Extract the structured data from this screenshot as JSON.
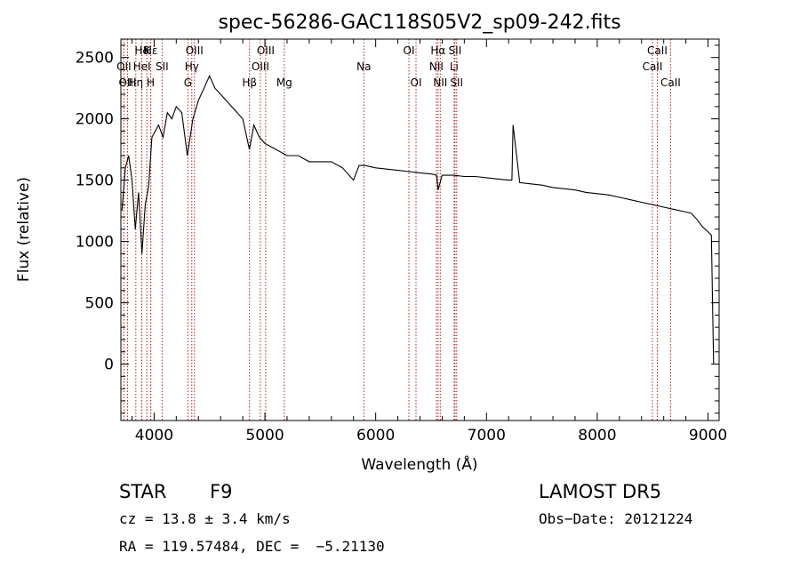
{
  "chart_data": {
    "type": "line",
    "title": "spec-56286-GAC118S05V2_sp09-242.fits",
    "xlabel": "Wavelength (Å)",
    "ylabel": "Flux (relative)",
    "xlim": [
      3700,
      9100
    ],
    "ylim": [
      -460,
      2650
    ],
    "xticks": [
      4000,
      5000,
      6000,
      7000,
      8000,
      9000
    ],
    "yticks": [
      0,
      500,
      1000,
      1500,
      2000,
      2500
    ],
    "grid": false,
    "line_color": "#000000",
    "marker_color": "#b22222",
    "series": [
      {
        "x": [
          3710,
          3740,
          3770,
          3800,
          3830,
          3860,
          3890,
          3920,
          3950,
          3980,
          4010,
          4040,
          4080,
          4120,
          4160,
          4200,
          4250,
          4300,
          4350,
          4400,
          4450,
          4500,
          4550,
          4600,
          4650,
          4700,
          4750,
          4800,
          4860,
          4900,
          4950,
          5000,
          5100,
          5200,
          5300,
          5400,
          5500,
          5600,
          5700,
          5800,
          5850,
          5900,
          6000,
          6100,
          6200,
          6300,
          6400,
          6500,
          6550,
          6563,
          6600,
          6700,
          6800,
          6900,
          7000,
          7100,
          7200,
          7230,
          7240,
          7300,
          7400,
          7500,
          7600,
          7700,
          7800,
          7900,
          8000,
          8100,
          8200,
          8300,
          8400,
          8500,
          8600,
          8700,
          8800,
          8850,
          8900,
          8950,
          9000,
          9030,
          9050
        ],
        "y": [
          1250,
          1600,
          1700,
          1500,
          1100,
          1400,
          900,
          1300,
          1450,
          1850,
          1900,
          1950,
          1850,
          2050,
          2000,
          2100,
          2050,
          1700,
          2000,
          2150,
          2250,
          2350,
          2250,
          2200,
          2150,
          2100,
          2050,
          2000,
          1750,
          1950,
          1850,
          1800,
          1750,
          1700,
          1700,
          1650,
          1650,
          1650,
          1600,
          1500,
          1620,
          1620,
          1600,
          1590,
          1580,
          1570,
          1560,
          1550,
          1540,
          1420,
          1540,
          1540,
          1530,
          1530,
          1520,
          1510,
          1500,
          1500,
          1950,
          1480,
          1470,
          1460,
          1440,
          1430,
          1420,
          1400,
          1390,
          1380,
          1360,
          1340,
          1320,
          1300,
          1280,
          1260,
          1240,
          1230,
          1180,
          1120,
          1080,
          1050,
          0
        ]
      }
    ],
    "lines": [
      {
        "name": "Hδ",
        "x": 3889,
        "row": 0
      },
      {
        "name": "K",
        "x": 3934,
        "row": 0
      },
      {
        "name": "Hε",
        "x": 3970,
        "row": 0
      },
      {
        "name": "OIII",
        "x": 4364,
        "row": 0
      },
      {
        "name": "OIII",
        "x": 5007,
        "row": 0
      },
      {
        "name": "OI",
        "x": 6300,
        "row": 0
      },
      {
        "name": "Hα",
        "x": 6563,
        "row": 0
      },
      {
        "name": "SII",
        "x": 6716,
        "row": 0
      },
      {
        "name": "CaII",
        "x": 8542,
        "row": 0
      },
      {
        "name": "OII",
        "x": 3727,
        "row": 1
      },
      {
        "name": "HeI",
        "x": 3889,
        "row": 1
      },
      {
        "name": "SII",
        "x": 4072,
        "row": 1
      },
      {
        "name": "Hγ",
        "x": 4340,
        "row": 1
      },
      {
        "name": "OIII",
        "x": 4959,
        "row": 1
      },
      {
        "name": "Na",
        "x": 5893,
        "row": 1
      },
      {
        "name": "NII",
        "x": 6548,
        "row": 1
      },
      {
        "name": "Li",
        "x": 6708,
        "row": 1
      },
      {
        "name": "CaII",
        "x": 8498,
        "row": 1
      },
      {
        "name": "OIII",
        "x": 3760,
        "row": 2
      },
      {
        "name": "Hη",
        "x": 3835,
        "row": 2
      },
      {
        "name": "H",
        "x": 3969,
        "row": 2
      },
      {
        "name": "G",
        "x": 4305,
        "row": 2
      },
      {
        "name": "Hβ",
        "x": 4861,
        "row": 2
      },
      {
        "name": "Mg",
        "x": 5175,
        "row": 2
      },
      {
        "name": "OI",
        "x": 6364,
        "row": 2
      },
      {
        "name": "NII",
        "x": 6583,
        "row": 2
      },
      {
        "name": "SII",
        "x": 6731,
        "row": 2
      },
      {
        "name": "CaII",
        "x": 8662,
        "row": 2
      }
    ]
  },
  "info": {
    "class": "STAR",
    "subclass": "F9",
    "survey": "LAMOST DR5",
    "cz": "cz = 13.8 ± 3.4 km/s",
    "obs_date": "Obs−Date: 20121224",
    "coords": "RA = 119.57484, DEC =  −5.21130"
  }
}
